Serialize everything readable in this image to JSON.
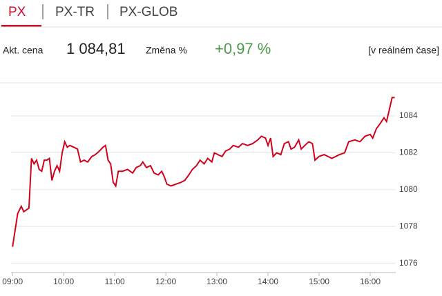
{
  "tabs": [
    "PX",
    "PX-TR",
    "PX-GLOB"
  ],
  "info": {
    "price_label": "Akt. cena",
    "price": "1 084,81",
    "change_label": "Změna %",
    "change": "+0,97 %",
    "realtime": "[v reálném čase]"
  },
  "chart_data": {
    "type": "line",
    "color": "#d0021b",
    "x": [
      9.0,
      9.05,
      9.1,
      9.17,
      9.22,
      9.27,
      9.32,
      9.37,
      9.42,
      9.47,
      9.52,
      9.57,
      9.62,
      9.67,
      9.72,
      9.77,
      9.82,
      9.87,
      9.92,
      9.97,
      10.02,
      10.07,
      10.12,
      10.2,
      10.27,
      10.33,
      10.4,
      10.47,
      10.55,
      10.62,
      10.7,
      10.77,
      10.82,
      10.87,
      10.92,
      10.97,
      11.02,
      11.07,
      11.15,
      11.25,
      11.35,
      11.42,
      11.5,
      11.55,
      11.62,
      11.7,
      11.77,
      11.85,
      11.92,
      11.97,
      12.02,
      12.1,
      12.2,
      12.3,
      12.37,
      12.45,
      12.52,
      12.6,
      12.67,
      12.75,
      12.82,
      12.9,
      12.95,
      13.02,
      13.1,
      13.17,
      13.25,
      13.32,
      13.42,
      13.5,
      13.6,
      13.7,
      13.8,
      13.87,
      13.95,
      14.0,
      14.05,
      14.1,
      14.17,
      14.25,
      14.32,
      14.4,
      14.45,
      14.52,
      14.6,
      14.65,
      14.72,
      14.8,
      14.87,
      14.92,
      15.0,
      15.1,
      15.25,
      15.4,
      15.5,
      15.58,
      15.7,
      15.8,
      15.9,
      16.0,
      16.05,
      16.12,
      16.2,
      16.27,
      16.32,
      16.38,
      16.43,
      16.48
    ],
    "values": [
      1076.9,
      1077.8,
      1078.7,
      1079.1,
      1078.8,
      1078.9,
      1079.0,
      1081.7,
      1081.4,
      1081.6,
      1081.1,
      1081.0,
      1081.6,
      1081.6,
      1081.7,
      1080.5,
      1081.0,
      1081.3,
      1081.0,
      1082.0,
      1082.6,
      1082.3,
      1082.4,
      1082.3,
      1082.2,
      1081.5,
      1081.6,
      1081.5,
      1081.8,
      1081.9,
      1082.1,
      1082.3,
      1082.4,
      1081.6,
      1081.4,
      1080.4,
      1080.2,
      1081.0,
      1081.0,
      1081.1,
      1080.9,
      1081.2,
      1081.3,
      1081.5,
      1081.2,
      1081.3,
      1080.9,
      1080.8,
      1081.0,
      1080.7,
      1080.3,
      1080.2,
      1080.3,
      1080.4,
      1080.5,
      1080.8,
      1081.1,
      1081.3,
      1081.6,
      1081.4,
      1081.7,
      1081.5,
      1082.0,
      1081.9,
      1081.8,
      1082.1,
      1082.2,
      1082.4,
      1082.3,
      1082.5,
      1082.4,
      1082.5,
      1082.7,
      1082.9,
      1082.8,
      1082.4,
      1082.8,
      1081.8,
      1082.0,
      1081.9,
      1082.5,
      1082.6,
      1082.2,
      1082.3,
      1082.7,
      1082.2,
      1082.4,
      1082.6,
      1082.5,
      1081.6,
      1081.8,
      1081.9,
      1081.7,
      1081.9,
      1082.0,
      1082.6,
      1082.7,
      1082.6,
      1082.9,
      1083.0,
      1082.8,
      1083.3,
      1083.6,
      1083.9,
      1083.7,
      1084.4,
      1085.0,
      1085.0
    ],
    "xlim": [
      8.97,
      16.5
    ],
    "xticks": [
      {
        "value": 9,
        "label": "09:00"
      },
      {
        "value": 10,
        "label": "10:00"
      },
      {
        "value": 11,
        "label": "11:00"
      },
      {
        "value": 12,
        "label": "12:00"
      },
      {
        "value": 13,
        "label": "13:00"
      },
      {
        "value": 14,
        "label": "14:00"
      },
      {
        "value": 15,
        "label": "15:00"
      },
      {
        "value": 16,
        "label": "16:00"
      }
    ],
    "ylim": [
      1075.5,
      1085.8
    ],
    "yticks": [
      1076,
      1078,
      1080,
      1082,
      1084
    ],
    "grid": true
  }
}
